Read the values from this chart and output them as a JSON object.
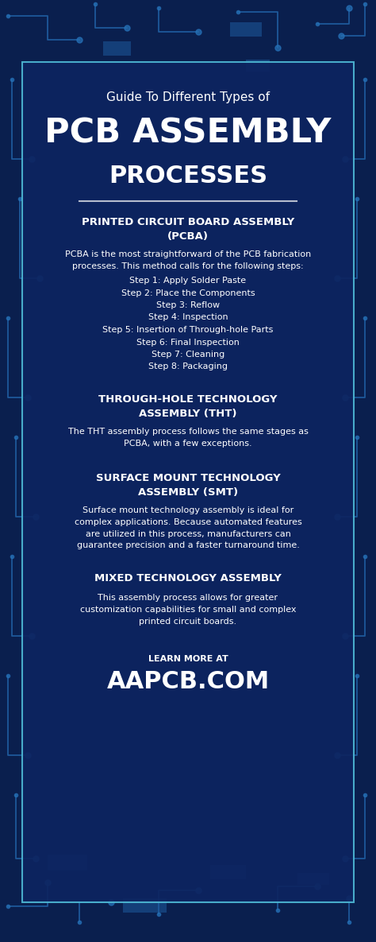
{
  "bg_color": "#0a1f4e",
  "card_bg": "#0d2460",
  "card_border": "#4db8d4",
  "white": "#ffffff",
  "cyan": "#4db8d4",
  "title_small": "Guide To Different Types of",
  "title_big": "PCB ASSEMBLY",
  "title_sub": "PROCESSES",
  "sections": [
    {
      "heading": "PRINTED CIRCUIT BOARD ASSEMBLY\n(PCBA)",
      "body": "PCBA is the most straightforward of the PCB fabrication\nprocesses. This method calls for the following steps:",
      "steps": [
        "Step 1: Apply Solder Paste",
        "Step 2: Place the Components",
        "Step 3: Reflow",
        "Step 4: Inspection",
        "Step 5: Insertion of Through-hole Parts",
        "Step 6: Final Inspection",
        "Step 7: Cleaning",
        "Step 8: Packaging"
      ]
    },
    {
      "heading": "THROUGH-HOLE TECHNOLOGY\nASSEMBLY (THT)",
      "body": "The THT assembly process follows the same stages as\nPCBA, with a few exceptions.",
      "steps": []
    },
    {
      "heading": "SURFACE MOUNT TECHNOLOGY\nASSEMBLY (SMT)",
      "body": "Surface mount technology assembly is ideal for\ncomplex applications. Because automated features\nare utilized in this process, manufacturers can\nguarantee precision and a faster turnaround time.",
      "steps": []
    },
    {
      "heading": "MIXED TECHNOLOGY ASSEMBLY",
      "body": "This assembly process allows for greater\ncustomization capabilities for small and complex\nprinted circuit boards.",
      "steps": []
    }
  ],
  "footer_small": "LEARN MORE AT",
  "footer_big": "AAPCB.COM",
  "traces_color1": "#1e5a9e",
  "traces_color2": "#2a7abf",
  "pad_color": "#1e5a9e"
}
